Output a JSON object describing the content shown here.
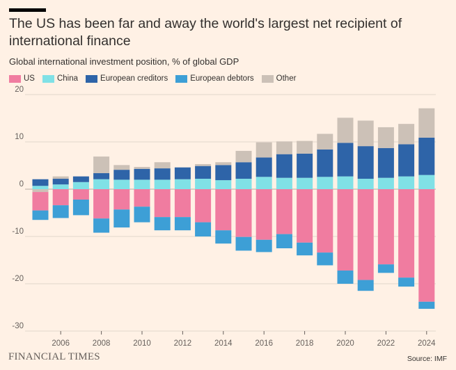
{
  "title": "The US has been far and away the world's largest net recipient of international finance",
  "subtitle": "Global international investment position, % of global GDP",
  "footer": {
    "brand": "FINANCIAL TIMES",
    "source": "Source: IMF"
  },
  "colors": {
    "US": "#f07ca0",
    "China": "#80e1e6",
    "European creditors": "#2e64a8",
    "European debtors": "#3d9fd6",
    "Other": "#ccc1b7",
    "background": "#fff1e5",
    "gridline": "#e2d7cc"
  },
  "chart_data": {
    "type": "bar",
    "stacked": true,
    "title": "The US has been far and away the world's largest net recipient of international finance",
    "subtitle": "Global international investment position, % of global GDP",
    "legend_position": "top-left",
    "grid": true,
    "ylim": [
      -30,
      20
    ],
    "yticks": [
      20,
      10,
      0,
      -10,
      -20,
      -30
    ],
    "xticks": [
      "2006",
      "2008",
      "2010",
      "2012",
      "2014",
      "2016",
      "2018",
      "2020",
      "2022",
      "2024"
    ],
    "categories": [
      "2005",
      "2006",
      "2007",
      "2008",
      "2009",
      "2010",
      "2011",
      "2012",
      "2013",
      "2014",
      "2015",
      "2016",
      "2017",
      "2018",
      "2019",
      "2020",
      "2021",
      "2022",
      "2023",
      "2024"
    ],
    "series": [
      {
        "name": "US",
        "values": [
          -3.9,
          -3.4,
          -2.2,
          -6.2,
          -4.3,
          -3.7,
          -5.9,
          -5.9,
          -7.0,
          -8.7,
          -10.1,
          -10.7,
          -9.5,
          -11.3,
          -13.4,
          -17.2,
          -19.2,
          -15.9,
          -18.7,
          -23.8
        ]
      },
      {
        "name": "China",
        "values": [
          0.7,
          1.0,
          1.5,
          2.1,
          2.0,
          2.0,
          2.0,
          2.1,
          2.2,
          1.9,
          2.2,
          2.6,
          2.4,
          2.4,
          2.6,
          2.7,
          2.2,
          2.4,
          2.7,
          3.0
        ]
      },
      {
        "name": "European creditors",
        "values": [
          1.4,
          1.2,
          1.2,
          1.3,
          2.1,
          2.3,
          2.4,
          2.5,
          2.7,
          3.2,
          3.5,
          4.1,
          5.0,
          5.1,
          5.8,
          7.1,
          6.9,
          6.3,
          6.8,
          7.9
        ]
      },
      {
        "name": "European debtors",
        "values": [
          -2.0,
          -2.7,
          -3.3,
          -3.0,
          -3.8,
          -3.3,
          -2.8,
          -2.8,
          -3.0,
          -2.8,
          -2.9,
          -2.6,
          -3.0,
          -2.7,
          -2.7,
          -2.8,
          -2.3,
          -1.8,
          -1.9,
          -1.5
        ]
      },
      {
        "name": "Other",
        "values": [
          -0.6,
          0.5,
          0.0,
          3.5,
          1.0,
          0.4,
          1.3,
          0.0,
          0.4,
          0.6,
          2.4,
          3.2,
          2.7,
          2.7,
          3.3,
          5.3,
          5.4,
          4.4,
          4.3,
          6.2
        ]
      }
    ]
  }
}
